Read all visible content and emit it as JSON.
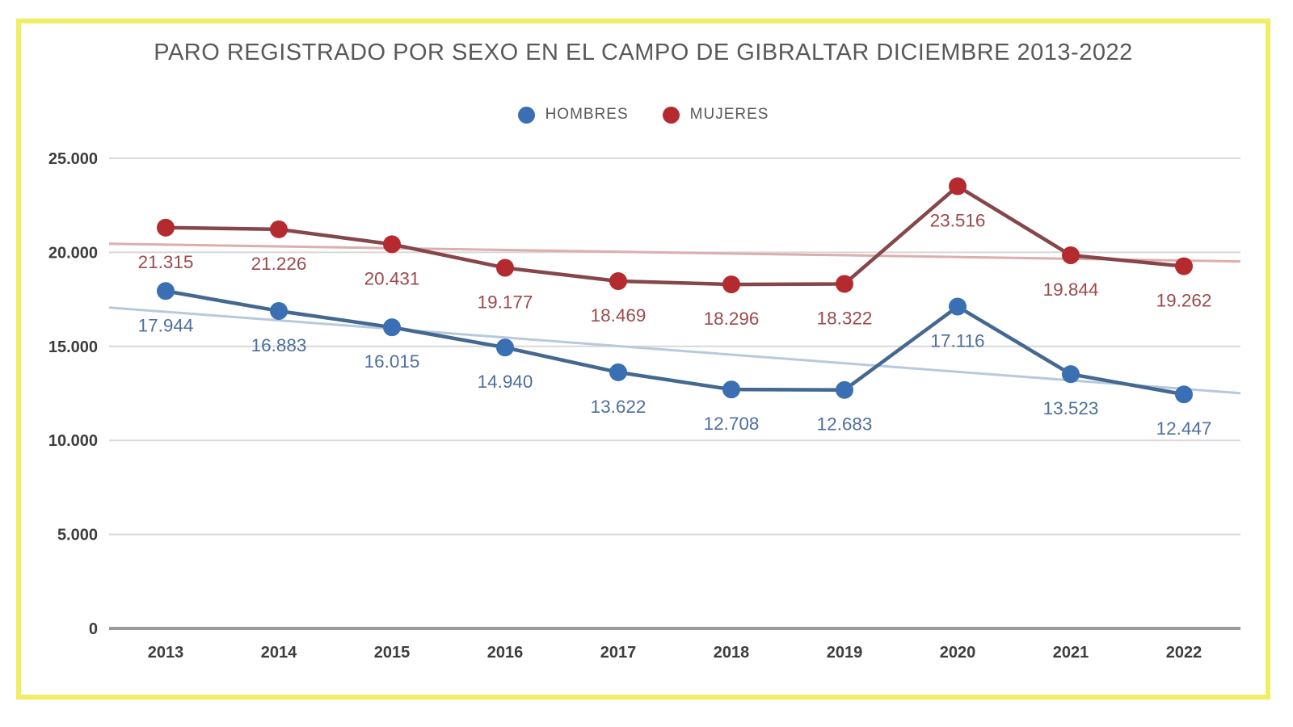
{
  "frame": {
    "border_color": "#f0ee62"
  },
  "chart": {
    "title": "PARO REGISTRADO POR SEXO EN EL CAMPO DE GIBRALTAR DICIEMBRE 2013-2022"
  },
  "chart_data": {
    "type": "line",
    "title": "PARO REGISTRADO POR SEXO EN EL CAMPO DE GIBRALTAR DICIEMBRE 2013-2022",
    "categories": [
      "2013",
      "2014",
      "2015",
      "2016",
      "2017",
      "2018",
      "2019",
      "2020",
      "2021",
      "2022"
    ],
    "series": [
      {
        "name": "HOMBRES",
        "values": [
          17944,
          16883,
          16015,
          14940,
          13622,
          12708,
          12683,
          17116,
          13523,
          12447
        ],
        "marker_color": "#3a6fb4",
        "line_color": "#44688f",
        "label_color": "#4f6f9e"
      },
      {
        "name": "MUJERES",
        "values": [
          21315,
          21226,
          20431,
          19177,
          18469,
          18296,
          18322,
          23516,
          19844,
          19262
        ],
        "marker_color": "#b52a2f",
        "line_color": "#85474a",
        "label_color": "#9c4a4d"
      }
    ],
    "trendlines": [
      {
        "series": "HOMBRES",
        "start": 17066,
        "end": 12510,
        "color": "#b9c9dc"
      },
      {
        "series": "MUJERES",
        "start": 20455,
        "end": 19517,
        "color": "#dcaeae"
      }
    ],
    "yticks": [
      0,
      5000,
      10000,
      15000,
      20000,
      25000
    ],
    "ylim": [
      0,
      25000
    ],
    "grid": true,
    "grid_color": "#d8d8d8",
    "axis_color": "#9a9a9a",
    "tick_label_color": "#3d3d3d",
    "legend_position": "top-center",
    "number_format": "thousands-dot"
  }
}
